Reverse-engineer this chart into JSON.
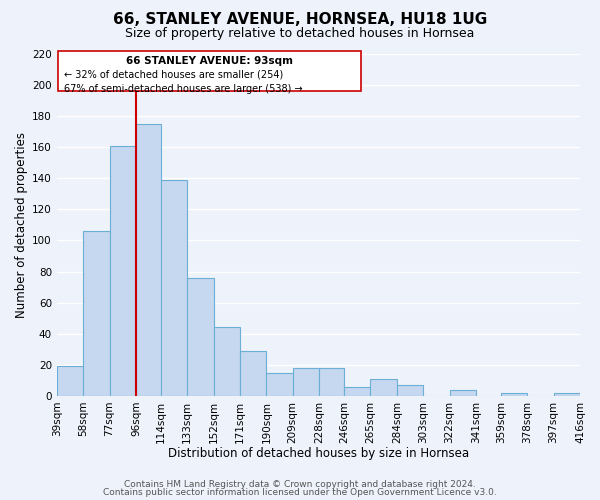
{
  "title": "66, STANLEY AVENUE, HORNSEA, HU18 1UG",
  "subtitle": "Size of property relative to detached houses in Hornsea",
  "xlabel": "Distribution of detached houses by size in Hornsea",
  "ylabel": "Number of detached properties",
  "bar_left_edges": [
    39,
    58,
    77,
    96,
    114,
    133,
    152,
    171,
    190,
    209,
    228,
    246,
    265,
    284,
    303,
    322,
    341,
    359,
    378,
    397
  ],
  "bar_heights": [
    19,
    106,
    161,
    175,
    139,
    76,
    44,
    29,
    15,
    18,
    18,
    6,
    11,
    7,
    0,
    4,
    0,
    2,
    0,
    2
  ],
  "bar_widths": [
    19,
    19,
    19,
    18,
    19,
    19,
    19,
    19,
    19,
    19,
    18,
    19,
    19,
    19,
    19,
    19,
    18,
    19,
    19,
    19
  ],
  "bar_color": "#c5d8ef",
  "bar_edge_color": "#6baed6",
  "tick_labels": [
    "39sqm",
    "58sqm",
    "77sqm",
    "96sqm",
    "114sqm",
    "133sqm",
    "152sqm",
    "171sqm",
    "190sqm",
    "209sqm",
    "228sqm",
    "246sqm",
    "265sqm",
    "284sqm",
    "303sqm",
    "322sqm",
    "341sqm",
    "359sqm",
    "378sqm",
    "397sqm",
    "416sqm"
  ],
  "ylim": [
    0,
    220
  ],
  "yticks": [
    0,
    20,
    40,
    60,
    80,
    100,
    120,
    140,
    160,
    180,
    200,
    220
  ],
  "vline_x": 96,
  "vline_color": "#cc0000",
  "annotation_title": "66 STANLEY AVENUE: 93sqm",
  "annotation_line1": "← 32% of detached houses are smaller (254)",
  "annotation_line2": "67% of semi-detached houses are larger (538) →",
  "footer_line1": "Contains HM Land Registry data © Crown copyright and database right 2024.",
  "footer_line2": "Contains public sector information licensed under the Open Government Licence v3.0.",
  "background_color": "#eef2fb",
  "grid_color": "#ffffff",
  "title_fontsize": 11,
  "subtitle_fontsize": 9,
  "axis_label_fontsize": 8.5,
  "tick_fontsize": 7.5,
  "footer_fontsize": 6.5
}
